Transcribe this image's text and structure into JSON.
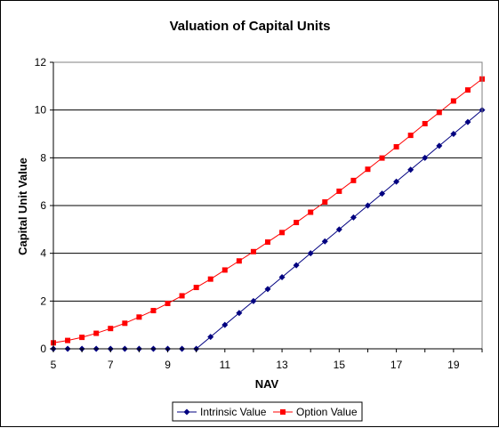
{
  "chart_data": {
    "type": "line",
    "title": "Valuation of Capital Units",
    "xlabel": "NAV",
    "ylabel": "Capital Unit Value",
    "xlim": [
      5,
      20
    ],
    "ylim": [
      0,
      12
    ],
    "xticks": [
      5,
      7,
      9,
      11,
      13,
      15,
      17,
      19
    ],
    "yticks": [
      0,
      2,
      4,
      6,
      8,
      10,
      12
    ],
    "grid": "horizontal",
    "legend_position": "bottom",
    "x": [
      5,
      5.5,
      6,
      6.5,
      7,
      7.5,
      8,
      8.5,
      9,
      9.5,
      10,
      10.5,
      11,
      11.5,
      12,
      12.5,
      13,
      13.5,
      14,
      14.5,
      15,
      15.5,
      16,
      16.5,
      17,
      17.5,
      18,
      18.5,
      19,
      19.5,
      20
    ],
    "series": [
      {
        "name": "Intrinsic Value",
        "color": "#000080",
        "marker": "diamond",
        "values": [
          0,
          0,
          0,
          0,
          0,
          0,
          0,
          0,
          0,
          0,
          0,
          0.5,
          1,
          1.5,
          2,
          2.5,
          3,
          3.5,
          4,
          4.5,
          5,
          5.5,
          6,
          6.5,
          7,
          7.5,
          8,
          8.5,
          9,
          9.5,
          10
        ]
      },
      {
        "name": "Option Value",
        "color": "#ff0000",
        "marker": "square",
        "values": [
          0.25,
          0.35,
          0.48,
          0.65,
          0.85,
          1.07,
          1.33,
          1.6,
          1.9,
          2.22,
          2.57,
          2.92,
          3.3,
          3.68,
          4.07,
          4.47,
          4.87,
          5.29,
          5.72,
          6.15,
          6.6,
          7.05,
          7.52,
          7.99,
          8.46,
          8.94,
          9.43,
          9.9,
          10.38,
          10.84,
          11.3
        ]
      }
    ]
  }
}
